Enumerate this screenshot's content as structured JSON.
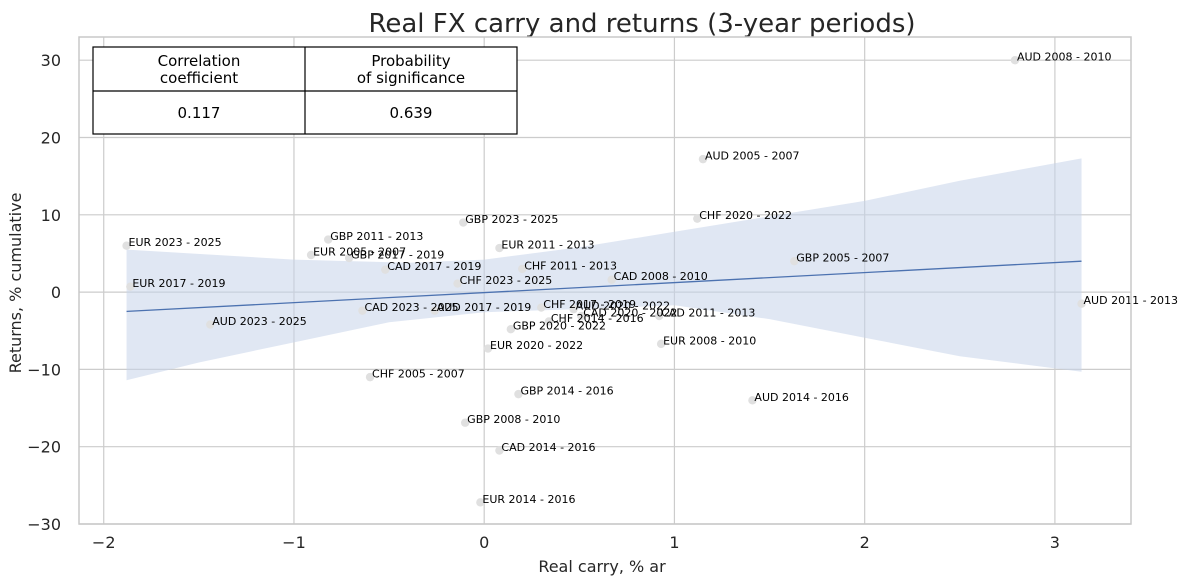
{
  "chart_data": {
    "type": "scatter",
    "title": "Real FX carry and returns (3-year periods)",
    "xlabel": "Real carry, % ar",
    "ylabel": "Returns, % cumulative",
    "xlim": [
      -2.13,
      3.4
    ],
    "ylim": [
      -30,
      33
    ],
    "xticks": [
      -2,
      -1,
      0,
      1,
      2,
      3
    ],
    "yticks": [
      -30,
      -20,
      -10,
      0,
      10,
      20,
      30
    ],
    "xtick_labels": [
      "−2",
      "−1",
      "0",
      "1",
      "2",
      "3"
    ],
    "ytick_labels": [
      "−30",
      "−20",
      "−10",
      "0",
      "10",
      "20",
      "30"
    ],
    "grid": true,
    "colors": {
      "point": "#e0e0e0",
      "line": "#4c72b0",
      "band": "#c6d3ea",
      "grid": "#cccccc",
      "frame": "#c8c8c8"
    },
    "points": [
      {
        "label": "AUD 2008 - 2010",
        "x": 2.79,
        "y": 30.0
      },
      {
        "label": "AUD 2005 - 2007",
        "x": 1.15,
        "y": 17.2
      },
      {
        "label": "CHF 2020 - 2022",
        "x": 1.12,
        "y": 9.5
      },
      {
        "label": "GBP 2023 - 2025",
        "x": -0.11,
        "y": 9.0
      },
      {
        "label": "EUR 2023 - 2025",
        "x": -1.88,
        "y": 6.0
      },
      {
        "label": "GBP 2011 - 2013",
        "x": -0.82,
        "y": 6.8
      },
      {
        "label": "EUR 2011 - 2013",
        "x": 0.08,
        "y": 5.7
      },
      {
        "label": "EUR 2005 - 2007",
        "x": -0.91,
        "y": 4.8
      },
      {
        "label": "GBP 2017 - 2019",
        "x": -0.71,
        "y": 4.4
      },
      {
        "label": "GBP 2005 - 2007",
        "x": 1.63,
        "y": 4.0
      },
      {
        "label": "CAD 2017 - 2019",
        "x": -0.52,
        "y": 2.9
      },
      {
        "label": "CHF 2011 - 2013",
        "x": 0.2,
        "y": 3.0
      },
      {
        "label": "CAD 2008 - 2010",
        "x": 0.67,
        "y": 1.6
      },
      {
        "label": "CHF 2023 - 2025",
        "x": -0.14,
        "y": 1.1
      },
      {
        "label": "EUR 2017 - 2019",
        "x": -1.86,
        "y": 0.7
      },
      {
        "label": "AUD 2011 - 2013",
        "x": 3.14,
        "y": -1.5
      },
      {
        "label": "CAD 2023 - 2025",
        "x": -0.64,
        "y": -2.4
      },
      {
        "label": "AUD 2017 - 2019",
        "x": -0.26,
        "y": -2.4
      },
      {
        "label": "CHF 2017 - 2019",
        "x": 0.3,
        "y": -2.0
      },
      {
        "label": "AUD 2020 - 2022",
        "x": 0.47,
        "y": -2.2
      },
      {
        "label": "CAD 2020 - 2022",
        "x": 0.51,
        "y": -3.1
      },
      {
        "label": "CAD 2011 - 2013",
        "x": 0.92,
        "y": -3.1
      },
      {
        "label": "CHF 2014 - 2016",
        "x": 0.34,
        "y": -3.8
      },
      {
        "label": "GBP 2020 - 2022",
        "x": 0.14,
        "y": -4.8
      },
      {
        "label": "AUD 2023 - 2025",
        "x": -1.44,
        "y": -4.2
      },
      {
        "label": "EUR 2020 - 2022",
        "x": 0.02,
        "y": -7.3
      },
      {
        "label": "EUR 2008 - 2010",
        "x": 0.93,
        "y": -6.7
      },
      {
        "label": "CHF 2005 - 2007",
        "x": -0.6,
        "y": -11.0
      },
      {
        "label": "GBP 2014 - 2016",
        "x": 0.18,
        "y": -13.2
      },
      {
        "label": "AUD 2014 - 2016",
        "x": 1.41,
        "y": -14.0
      },
      {
        "label": "GBP 2008 - 2010",
        "x": -0.1,
        "y": -16.9
      },
      {
        "label": "CAD 2014 - 2016",
        "x": 0.08,
        "y": -20.5
      },
      {
        "label": "EUR 2014 - 2016",
        "x": -0.02,
        "y": -27.2
      }
    ],
    "regression": {
      "x": [
        -1.88,
        3.14
      ],
      "y": [
        -2.5,
        4.0
      ],
      "ci_upper": [
        {
          "x": -1.88,
          "y": 5.5
        },
        {
          "x": -1.0,
          "y": 4.2
        },
        {
          "x": -0.4,
          "y": 3.8
        },
        {
          "x": 0.0,
          "y": 4.2
        },
        {
          "x": 0.5,
          "y": 5.8
        },
        {
          "x": 1.0,
          "y": 7.8
        },
        {
          "x": 1.5,
          "y": 9.8
        },
        {
          "x": 2.0,
          "y": 11.8
        },
        {
          "x": 2.5,
          "y": 14.4
        },
        {
          "x": 3.14,
          "y": 17.3
        }
      ],
      "ci_lower": [
        {
          "x": -1.88,
          "y": -11.4
        },
        {
          "x": -1.5,
          "y": -9.1
        },
        {
          "x": -1.0,
          "y": -6.5
        },
        {
          "x": -0.5,
          "y": -3.9
        },
        {
          "x": 0.0,
          "y": -2.6
        },
        {
          "x": 0.5,
          "y": -2.2
        },
        {
          "x": 1.0,
          "y": -1.7
        },
        {
          "x": 1.5,
          "y": -3.5
        },
        {
          "x": 2.0,
          "y": -5.9
        },
        {
          "x": 2.5,
          "y": -8.3
        },
        {
          "x": 3.14,
          "y": -10.3
        }
      ]
    },
    "stats_table": {
      "headers": [
        "Correlation\ncoefficient",
        "Probability\nof significance"
      ],
      "values": [
        "0.117",
        "0.639"
      ]
    }
  }
}
